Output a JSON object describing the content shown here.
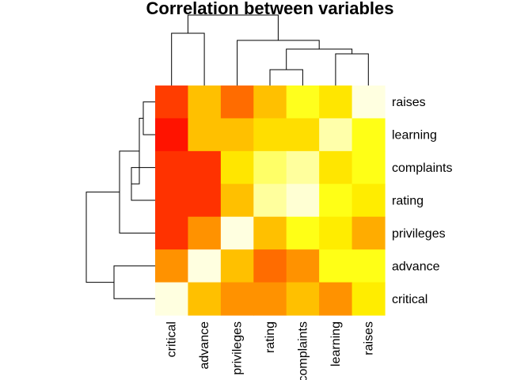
{
  "chart_data": {
    "type": "heatmap",
    "title": "Correlation between variables",
    "xlabel": "",
    "ylabel": "",
    "columns": [
      "critical",
      "advance",
      "privileges",
      "rating",
      "complaints",
      "learning",
      "raises"
    ],
    "rows": [
      "raises",
      "learning",
      "complaints",
      "rating",
      "privileges",
      "advance",
      "critical"
    ],
    "values": [
      [
        0.16,
        0.5,
        0.28,
        0.5,
        0.71,
        0.6,
        1.0
      ],
      [
        0.05,
        0.5,
        0.5,
        0.58,
        0.58,
        0.92,
        0.7
      ],
      [
        0.13,
        0.13,
        0.6,
        0.82,
        0.9,
        0.6,
        0.7
      ],
      [
        0.13,
        0.13,
        0.5,
        0.9,
        0.98,
        0.7,
        0.62
      ],
      [
        0.13,
        0.38,
        1.0,
        0.5,
        0.7,
        0.62,
        0.45
      ],
      [
        0.38,
        1.0,
        0.5,
        0.28,
        0.38,
        0.7,
        0.7
      ],
      [
        1.0,
        0.5,
        0.38,
        0.38,
        0.5,
        0.38,
        0.62
      ]
    ],
    "color_scale": [
      "#ff0000",
      "#ff8000",
      "#ffff00",
      "#ffffe0"
    ],
    "row_dendrogram": [
      [
        0,
        1
      ],
      [
        2,
        3
      ],
      [
        7,
        8
      ],
      [
        4,
        9
      ],
      [
        5,
        6
      ],
      [
        10,
        11
      ]
    ],
    "column_dendrogram": [
      [
        3,
        4
      ],
      [
        5,
        6
      ],
      [
        7,
        8
      ],
      [
        2,
        9
      ],
      [
        0,
        1
      ],
      [
        10,
        11
      ]
    ]
  }
}
